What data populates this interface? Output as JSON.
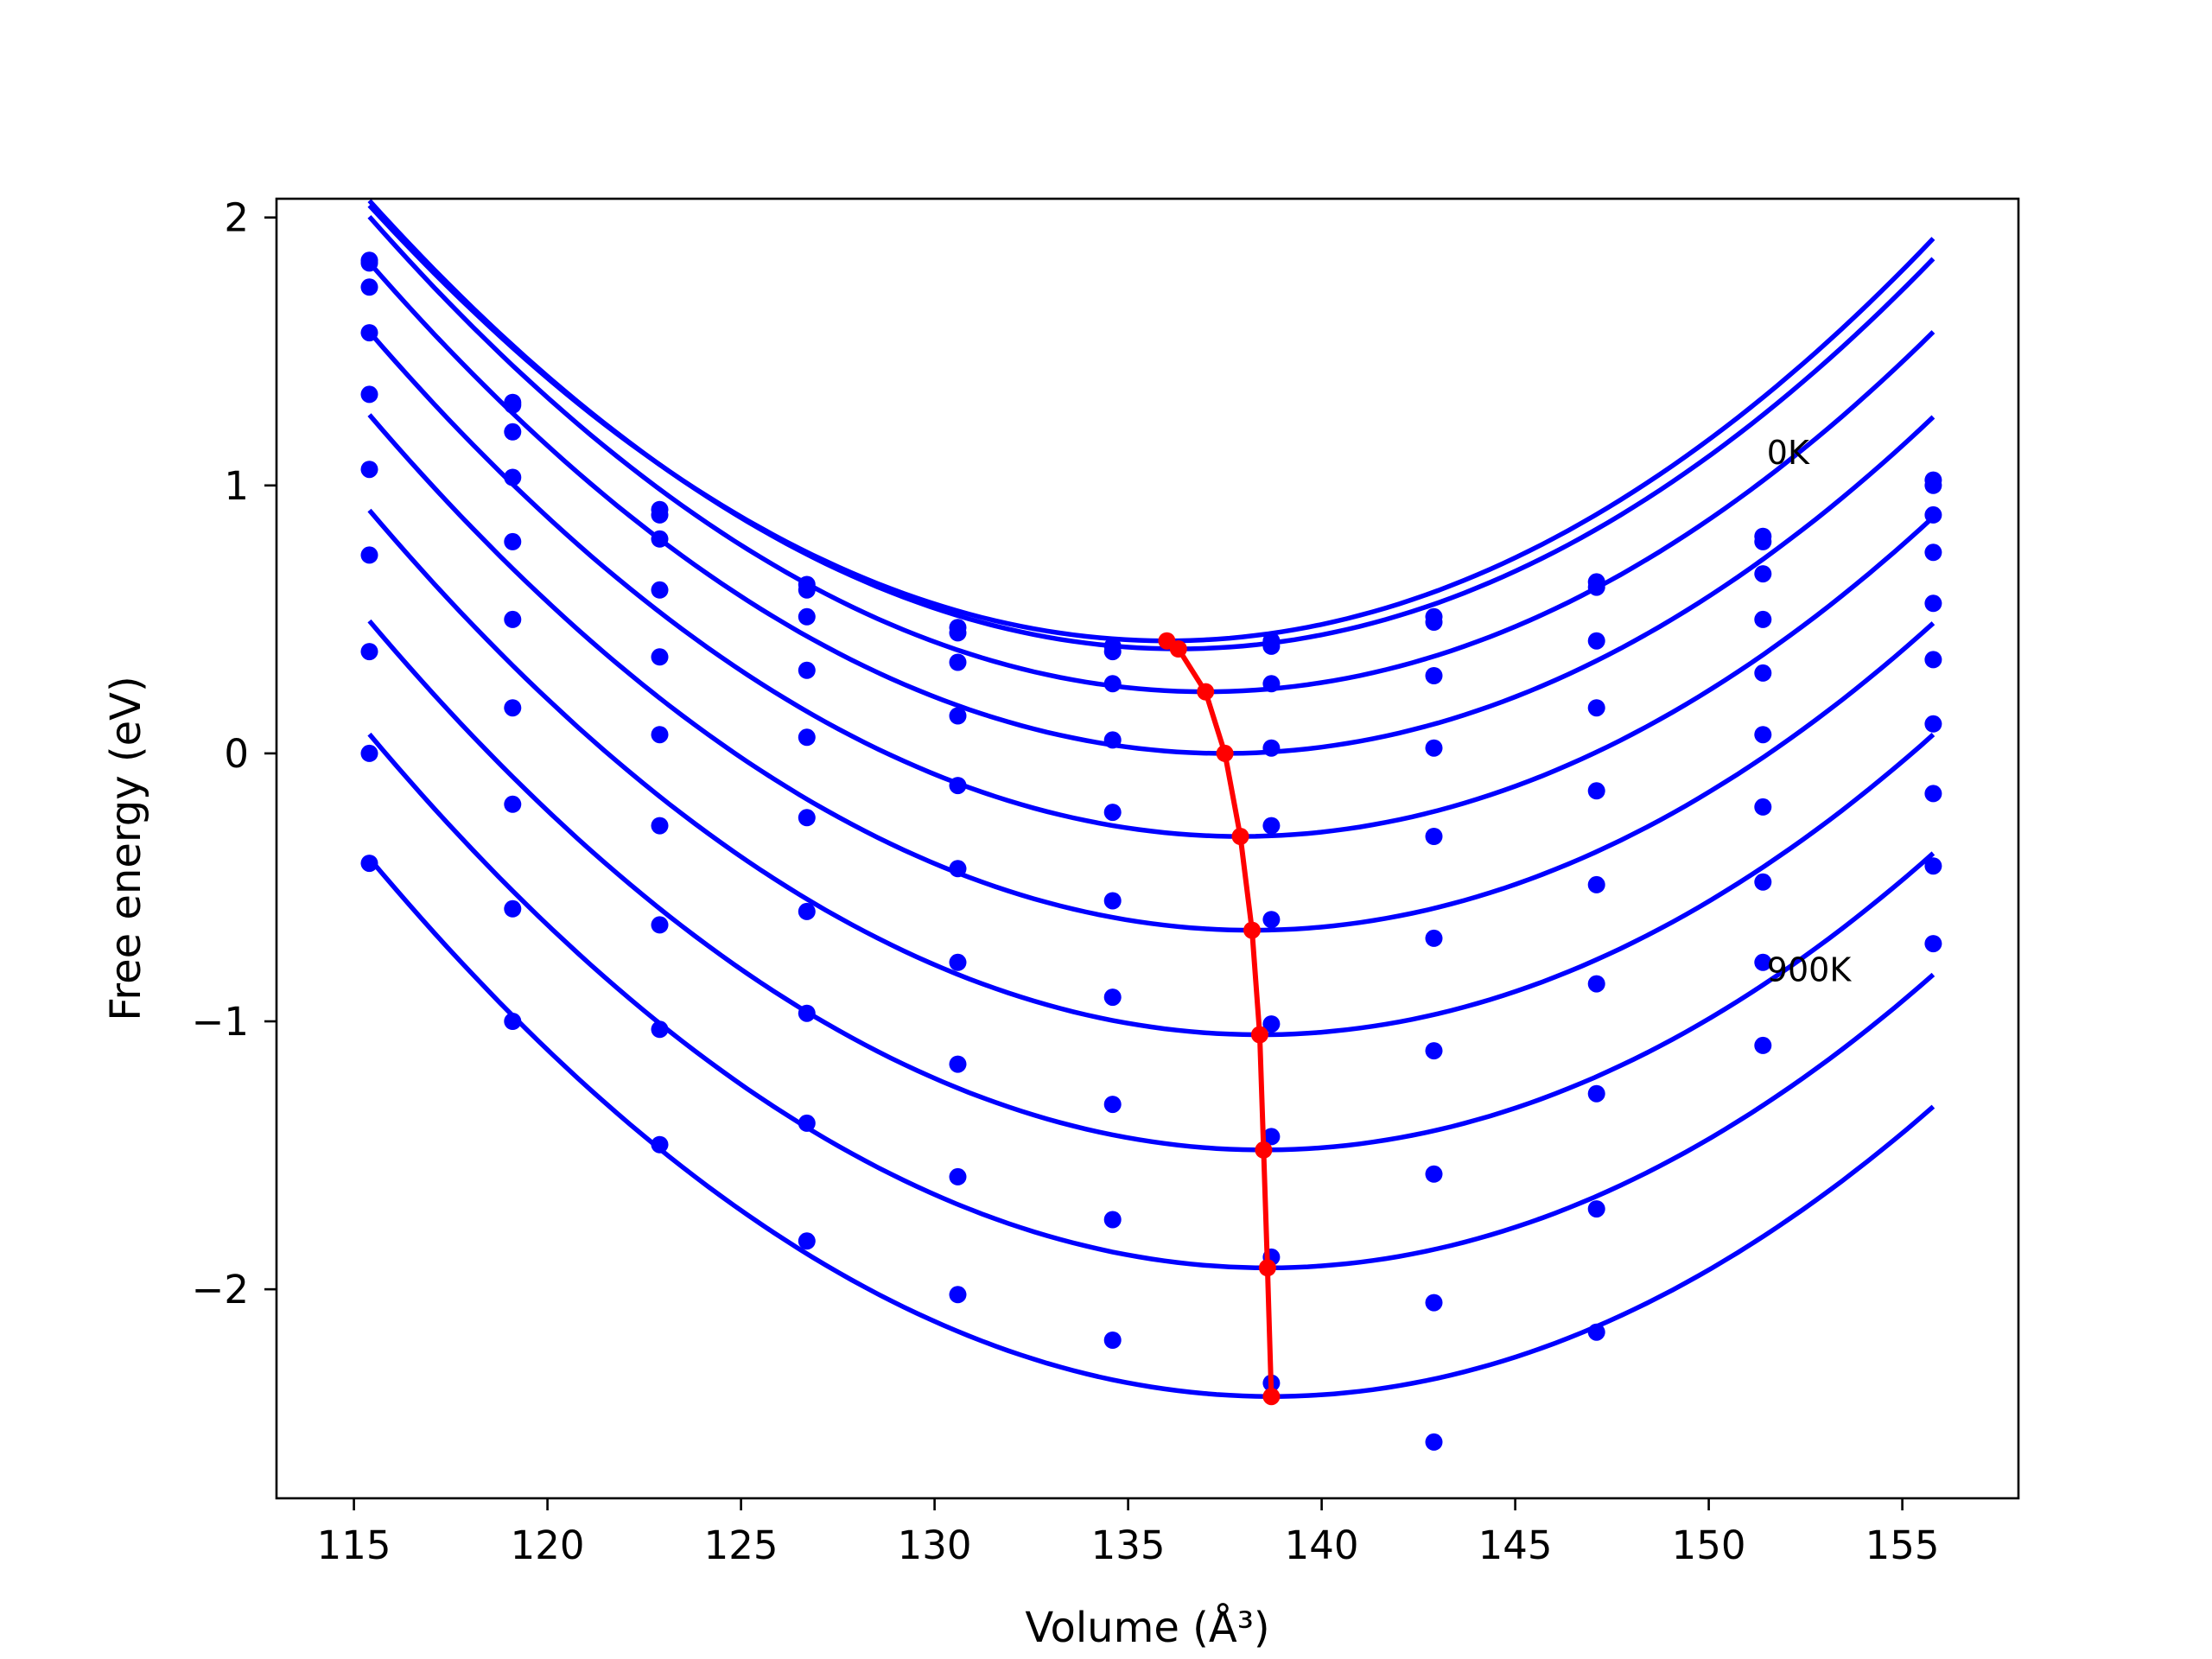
{
  "chart_data": {
    "type": "scatter",
    "xlabel": "Volume (Å³)",
    "ylabel": "Free energy (eV)",
    "xlim": [
      113,
      158
    ],
    "ylim": [
      -2.78,
      2.07
    ],
    "x_ticks": [
      115,
      120,
      125,
      130,
      135,
      140,
      145,
      150,
      155
    ],
    "y_ticks": [
      -2,
      -1,
      0,
      1,
      2
    ],
    "y_tick_labels": [
      "−2",
      "−1",
      "0",
      "1",
      "2"
    ],
    "grid": false,
    "annotations": [
      {
        "text": "0K",
        "x": 151.5,
        "y": 1.08
      },
      {
        "text": "900K",
        "x": 151.5,
        "y": -0.85
      }
    ],
    "point_series_color": "#0000ff",
    "fit_series_color": "#0000ff",
    "minimum_series_color": "#ff0000",
    "volumes": [
      115.4,
      119.1,
      122.9,
      126.7,
      130.6,
      134.6,
      138.7,
      142.9,
      147.1,
      151.4,
      155.8
    ],
    "temperature_series": [
      {
        "points": [
          1.84,
          1.31,
          0.91,
          0.63,
          0.47,
          0.4,
          0.42,
          0.51,
          0.64,
          0.81,
          1.02
        ],
        "fit": {
          "a": 0.00383,
          "v0": 136.0,
          "c": 0.42
        }
      },
      {
        "points": [
          1.83,
          1.3,
          0.89,
          0.61,
          0.45,
          0.38,
          0.4,
          0.49,
          0.62,
          0.79,
          1.0
        ],
        "fit": {
          "a": 0.00383,
          "v0": 136.3,
          "c": 0.39
        }
      },
      {
        "points": [
          1.74,
          1.2,
          0.8,
          0.51,
          0.34,
          0.26,
          0.26,
          0.29,
          0.42,
          0.67,
          0.89
        ],
        "fit": {
          "a": 0.0038,
          "v0": 137.0,
          "c": 0.23
        }
      },
      {
        "points": [
          1.57,
          1.03,
          0.61,
          0.31,
          0.14,
          0.05,
          0.02,
          0.02,
          0.17,
          0.5,
          0.75
        ],
        "fit": {
          "a": 0.00375,
          "v0": 137.5,
          "c": 0.0
        }
      },
      {
        "points": [
          1.34,
          0.79,
          0.36,
          0.06,
          -0.12,
          -0.22,
          -0.27,
          -0.31,
          -0.14,
          0.3,
          0.56
        ],
        "fit": {
          "a": 0.00372,
          "v0": 137.9,
          "c": -0.31
        }
      },
      {
        "points": [
          1.06,
          0.5,
          0.07,
          -0.24,
          -0.43,
          -0.55,
          -0.62,
          -0.69,
          -0.49,
          0.07,
          0.35
        ],
        "fit": {
          "a": 0.0037,
          "v0": 138.2,
          "c": -0.66
        }
      },
      {
        "points": [
          0.74,
          0.17,
          -0.27,
          -0.59,
          -0.78,
          -0.91,
          -1.01,
          -1.11,
          -0.86,
          -0.2,
          0.11
        ],
        "fit": {
          "a": 0.0037,
          "v0": 138.4,
          "c": -1.05
        }
      },
      {
        "points": [
          0.38,
          -0.19,
          -0.64,
          -0.97,
          -1.16,
          -1.31,
          -1.43,
          -1.57,
          -1.27,
          -0.48,
          -0.15
        ],
        "fit": {
          "a": 0.0037,
          "v0": 138.5,
          "c": -1.48
        }
      },
      {
        "points": [
          0.0,
          -0.58,
          -1.03,
          -1.38,
          -1.58,
          -1.74,
          -1.88,
          -2.05,
          -1.7,
          -0.78,
          -0.42
        ],
        "fit": {
          "a": 0.0037,
          "v0": 138.6,
          "c": -1.92
        }
      },
      {
        "points": [
          -0.41,
          -1.0,
          -1.46,
          -1.82,
          -2.02,
          -2.19,
          -2.35,
          -2.57,
          -2.16,
          -1.09,
          -0.71
        ],
        "fit": {
          "a": 0.0037,
          "v0": 138.7,
          "c": -2.4
        }
      }
    ],
    "minimum_line": {
      "x": [
        136.0,
        136.3,
        137.0,
        137.5,
        137.9,
        138.2,
        138.4,
        138.5,
        138.6,
        138.7
      ],
      "y": [
        0.42,
        0.39,
        0.23,
        0.0,
        -0.31,
        -0.66,
        -1.05,
        -1.48,
        -1.92,
        -2.4
      ]
    }
  }
}
